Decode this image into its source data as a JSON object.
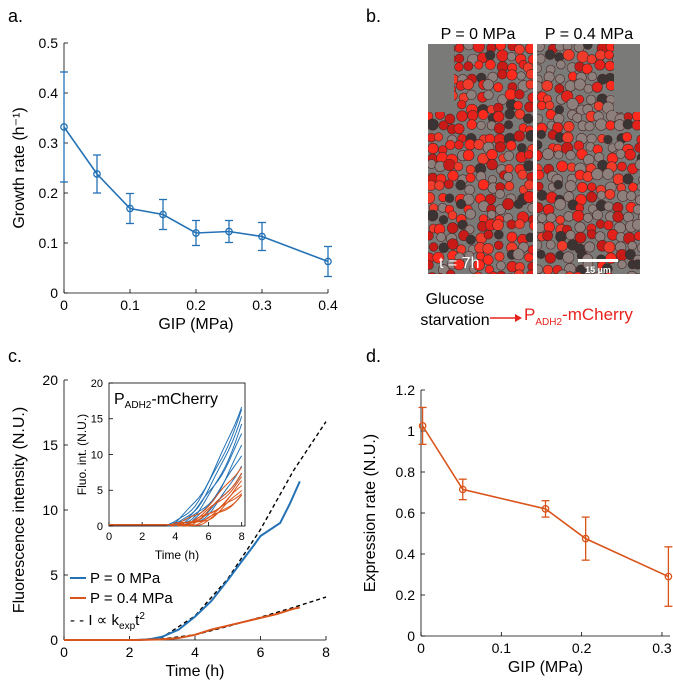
{
  "panels": {
    "a": "a.",
    "b": "b.",
    "c": "c.",
    "d": "d."
  },
  "panel_b": {
    "label_left": "P = 0 MPa",
    "label_right": "P = 0.4 MPa",
    "time_label": "t = 7h",
    "scale_bar": "15 µm",
    "pathway_input": [
      "Glucose",
      "starvation"
    ],
    "pathway_output_main": "P",
    "pathway_output_sub": "ADH2",
    "pathway_output_rest": "-mCherry",
    "colors": {
      "red": "#e8231f",
      "cells_red": "#e02020"
    }
  },
  "chart_data": [
    {
      "id": "a",
      "type": "line",
      "xlabel": "GIP (MPa)",
      "ylabel": "Growth rate (h⁻¹)",
      "xlim": [
        0,
        0.4
      ],
      "ylim": [
        0,
        0.5
      ],
      "xticks": [
        0,
        0.1,
        0.2,
        0.3,
        0.4
      ],
      "xtick_labels": [
        "0",
        "0.1",
        "0.2",
        "0.3",
        "0.4"
      ],
      "yticks": [
        0,
        0.1,
        0.2,
        0.3,
        0.4,
        0.5
      ],
      "ytick_labels": [
        "0",
        "0.1",
        "0.2",
        "0.3",
        "0.4",
        "0.5"
      ],
      "color": "#2472b5",
      "x": [
        0,
        0.05,
        0.1,
        0.15,
        0.2,
        0.25,
        0.3,
        0.4
      ],
      "y": [
        0.332,
        0.238,
        0.169,
        0.157,
        0.12,
        0.123,
        0.113,
        0.063
      ],
      "err": [
        0.11,
        0.038,
        0.03,
        0.03,
        0.025,
        0.022,
        0.028,
        0.03
      ]
    },
    {
      "id": "c",
      "type": "line",
      "xlabel": "Time (h)",
      "ylabel": "Fluorescence intensity (N.U.)",
      "xlim": [
        0,
        8
      ],
      "ylim": [
        0,
        20
      ],
      "xticks": [
        0,
        2,
        4,
        6,
        8
      ],
      "yticks": [
        0,
        5,
        10,
        15,
        20
      ],
      "series": [
        {
          "name": "P = 0 MPa",
          "color": "#2472b5",
          "x": [
            0,
            2.2,
            2.6,
            3,
            3.5,
            4,
            4.5,
            5,
            5.5,
            5.8,
            6,
            6.3,
            6.6,
            6.9,
            7.2
          ],
          "y": [
            0,
            0,
            0.05,
            0.25,
            0.8,
            1.8,
            3.0,
            4.6,
            6.3,
            7.3,
            8.0,
            8.5,
            9.0,
            10.5,
            12.2
          ]
        },
        {
          "name": "P = 0.4 MPa",
          "color": "#d9541a",
          "x": [
            0,
            2.2,
            3,
            3.5,
            4,
            4.5,
            5,
            5.5,
            6,
            6.5,
            7,
            7.2
          ],
          "y": [
            0,
            0,
            0.05,
            0.15,
            0.4,
            0.8,
            1.1,
            1.4,
            1.7,
            2.0,
            2.4,
            2.5
          ]
        }
      ],
      "fits": [
        {
          "style": "dashed",
          "x": [
            2.3,
            3,
            4,
            5,
            6,
            7,
            8
          ],
          "y": [
            0,
            0.2,
            1.85,
            4.7,
            8.5,
            13.0,
            16.8
          ]
        },
        {
          "style": "dashed",
          "x": [
            2.3,
            3,
            4,
            5,
            6,
            7,
            8
          ],
          "y": [
            0,
            0.08,
            0.4,
            1.05,
            1.75,
            2.5,
            3.3
          ]
        }
      ],
      "legend": {
        "entries": [
          "P = 0 MPa",
          "P = 0.4 MPa"
        ],
        "fit_label_prefix": "- -  I  ∝ k",
        "fit_label_sub": "exp",
        "fit_label_suffix": "t",
        "fit_label_sup": "2"
      },
      "inset": {
        "title_main": "P",
        "title_sub": "ADH2",
        "title_rest": "-mCherry",
        "xlabel": "Time (h)",
        "ylabel": "Fluo. int. (N.U.)",
        "xlim": [
          0,
          8.2
        ],
        "ylim": [
          0,
          20
        ],
        "xticks": [
          0,
          2,
          4,
          6,
          8
        ],
        "yticks": [
          0,
          5,
          10,
          15,
          20
        ],
        "blue_final": [
          17.3,
          15.8,
          14.5,
          13.0,
          11.6,
          10.2,
          8.9,
          7.6,
          16.6
        ],
        "blue_onset": [
          3.5,
          3.9,
          4.2,
          3.7,
          4.5,
          4.0,
          4.8,
          4.4,
          3.6
        ],
        "orange_final": [
          8.6,
          7.6,
          6.8,
          6.2,
          5.6,
          5.2,
          4.8,
          4.5,
          4.2
        ],
        "orange_onset": [
          3.8,
          4.3,
          4.0,
          4.6,
          4.2,
          4.9,
          4.4,
          5.0,
          4.7
        ]
      }
    },
    {
      "id": "d",
      "type": "line",
      "xlabel": "GIP (MPa)",
      "ylabel": "Expression rate (N.U.)",
      "xlim": [
        0,
        0.31
      ],
      "ylim": [
        0,
        1.2
      ],
      "xticks": [
        0,
        0.1,
        0.2,
        0.3
      ],
      "xtick_labels": [
        "0",
        "0.1",
        "0.2",
        "0.3"
      ],
      "yticks": [
        0,
        0.2,
        0.4,
        0.6,
        0.8,
        1,
        1.2
      ],
      "ytick_labels": [
        "0",
        "0.2",
        "0.4",
        "0.6",
        "0.8",
        "1",
        "1.2"
      ],
      "color": "#d9541a",
      "x": [
        0.002,
        0.052,
        0.155,
        0.205,
        0.308
      ],
      "y": [
        1.025,
        0.715,
        0.62,
        0.475,
        0.29
      ],
      "err": [
        0.09,
        0.05,
        0.04,
        0.105,
        0.145
      ]
    }
  ]
}
